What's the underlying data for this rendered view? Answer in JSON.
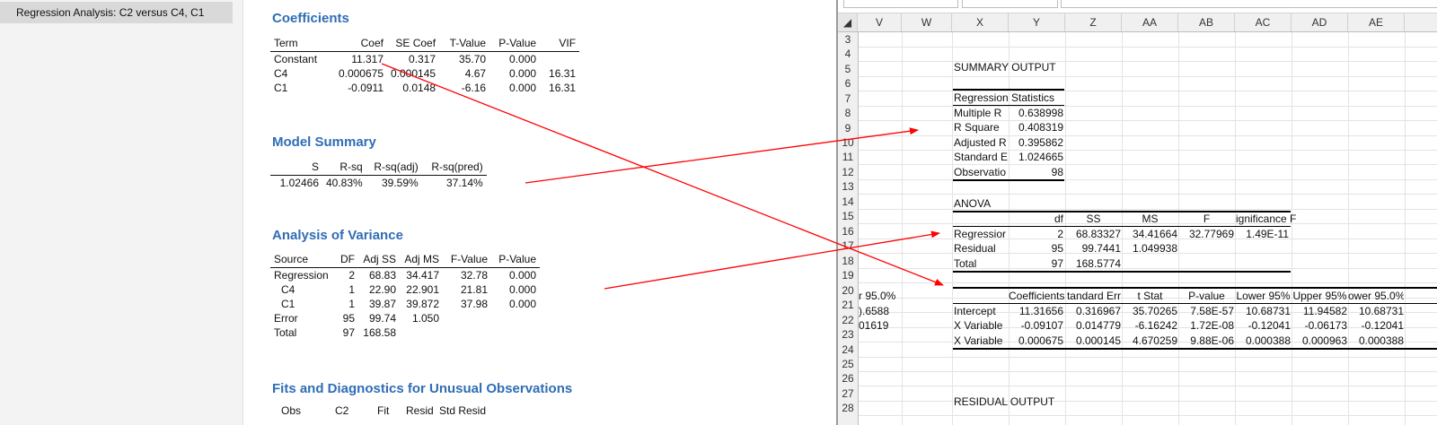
{
  "minitab": {
    "nav_item": "Regression Analysis: C2 versus C4, C1",
    "coefficients": {
      "title": "Coefficients",
      "headers": [
        "Term",
        "Coef",
        "SE Coef",
        "T-Value",
        "P-Value",
        "VIF"
      ],
      "rows": [
        [
          "Constant",
          "11.317",
          "0.317",
          "35.70",
          "0.000",
          ""
        ],
        [
          "C4",
          "0.000675",
          "0.000145",
          "4.67",
          "0.000",
          "16.31"
        ],
        [
          "C1",
          "-0.0911",
          "0.0148",
          "-6.16",
          "0.000",
          "16.31"
        ]
      ]
    },
    "model_summary": {
      "title": "Model Summary",
      "headers": [
        "S",
        "R-sq",
        "R-sq(adj)",
        "R-sq(pred)"
      ],
      "row": [
        "1.02466",
        "40.83%",
        "39.59%",
        "37.14%"
      ]
    },
    "anova": {
      "title": "Analysis of Variance",
      "headers": [
        "Source",
        "DF",
        "Adj SS",
        "Adj MS",
        "F-Value",
        "P-Value"
      ],
      "rows": [
        [
          "Regression",
          "2",
          "68.83",
          "34.417",
          "32.78",
          "0.000"
        ],
        [
          "C4",
          "1",
          "22.90",
          "22.901",
          "21.81",
          "0.000"
        ],
        [
          "C1",
          "1",
          "39.87",
          "39.872",
          "37.98",
          "0.000"
        ],
        [
          "Error",
          "95",
          "99.74",
          "1.050",
          "",
          ""
        ],
        [
          "Total",
          "97",
          "168.58",
          "",
          "",
          ""
        ]
      ]
    },
    "fits": {
      "title": "Fits and Diagnostics for Unusual Observations",
      "headers": [
        "Obs",
        "C2",
        "Fit",
        "Resid",
        "Std Resid"
      ]
    }
  },
  "excel": {
    "columns": [
      "V",
      "W",
      "X",
      "Y",
      "Z",
      "AA",
      "AB",
      "AC",
      "AD",
      "AE"
    ],
    "rows": [
      "3",
      "4",
      "5",
      "6",
      "7",
      "8",
      "9",
      "10",
      "11",
      "12",
      "13",
      "14",
      "15",
      "16",
      "17",
      "18",
      "19",
      "20",
      "21",
      "22",
      "23",
      "24",
      "25",
      "26",
      "27",
      "28"
    ],
    "summary_output": "SUMMARY OUTPUT",
    "regression_statistics": {
      "header": "Regression Statistics",
      "labels": [
        "Multiple R",
        "R Square",
        "Adjusted R",
        "Standard E",
        "Observatio"
      ],
      "values": [
        "0.638998",
        "0.408319",
        "0.395862",
        "1.024665",
        "98"
      ]
    },
    "anova_label": "ANOVA",
    "anova_headers": [
      "df",
      "SS",
      "MS",
      "F",
      "ignificance F"
    ],
    "anova_rows": [
      [
        "Regressior",
        "2",
        "68.83327",
        "34.41664",
        "32.77969",
        "1.49E-11"
      ],
      [
        "Residual",
        "95",
        "99.7441",
        "1.049938",
        "",
        ""
      ],
      [
        "Total",
        "97",
        "168.5774",
        "",
        "",
        ""
      ]
    ],
    "coef_headers": [
      "Coefficients",
      "tandard Err",
      "t Stat",
      "P-value",
      "Lower 95%",
      "Upper 95%",
      "ower 95.0%"
    ],
    "coef_rows": [
      [
        "Intercept",
        "11.31656",
        "0.316967",
        "35.70265",
        "7.58E-57",
        "10.68731",
        "11.94582",
        "10.68731"
      ],
      [
        "X Variable",
        "-0.09107",
        "0.014779",
        "-6.16242",
        "1.72E-08",
        "-0.12041",
        "-0.06173",
        "-0.12041"
      ],
      [
        "X Variable",
        "0.000675",
        "0.000145",
        "4.670259",
        "9.88E-06",
        "0.000388",
        "0.000963",
        "0.000388"
      ]
    ],
    "v_col_cells": [
      "r 95.0%",
      ").6588",
      "01619"
    ],
    "residual_output": "RESIDUAL OUTPUT",
    "accent_color": "#ff0000"
  }
}
